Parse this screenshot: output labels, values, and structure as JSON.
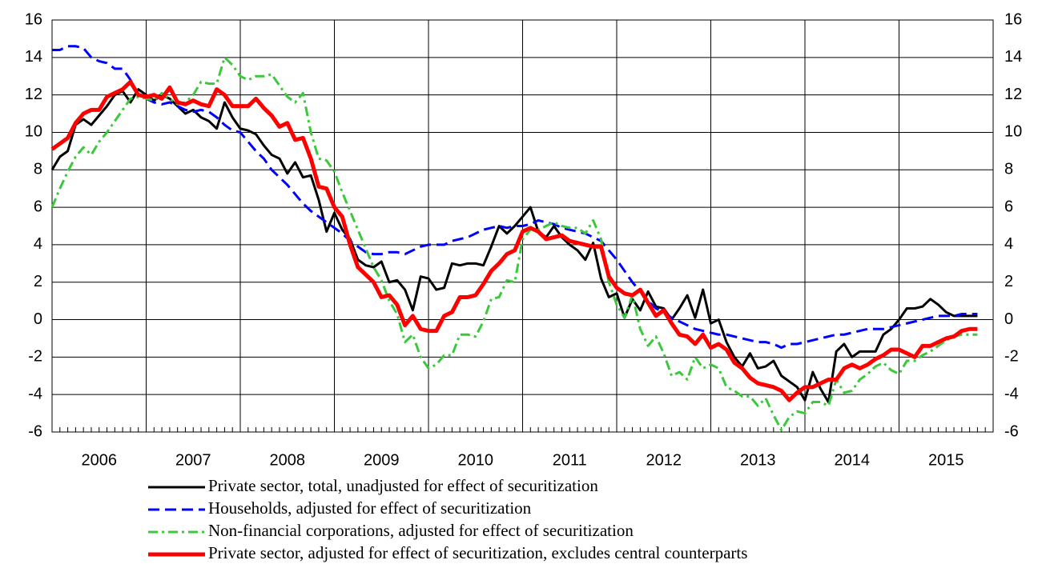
{
  "chart_data": {
    "type": "line",
    "categories": [
      null,
      null,
      null,
      null,
      null,
      null,
      "2006",
      null,
      null,
      null,
      null,
      null,
      null,
      null,
      null,
      null,
      null,
      null,
      "2007",
      null,
      null,
      null,
      null,
      null,
      null,
      null,
      null,
      null,
      null,
      null,
      "2008",
      null,
      null,
      null,
      null,
      null,
      null,
      null,
      null,
      null,
      null,
      null,
      "2009",
      null,
      null,
      null,
      null,
      null,
      null,
      null,
      null,
      null,
      null,
      null,
      "2010",
      null,
      null,
      null,
      null,
      null,
      null,
      null,
      null,
      null,
      null,
      null,
      "2011",
      null,
      null,
      null,
      null,
      null,
      null,
      null,
      null,
      null,
      null,
      null,
      "2012",
      null,
      null,
      null,
      null,
      null,
      null,
      null,
      null,
      null,
      null,
      null,
      "2013",
      null,
      null,
      null,
      null,
      null,
      null,
      null,
      null,
      null,
      null,
      null,
      "2014",
      null,
      null,
      null,
      null,
      null,
      null,
      null,
      null,
      null,
      null,
      null,
      "2015",
      null,
      null,
      null,
      null
    ],
    "series": [
      {
        "name": "Private sector, total, unadjusted for effect of securitization",
        "color": "#000000",
        "values": [
          8.0,
          8.7,
          9.0,
          10.4,
          10.7,
          10.4,
          10.9,
          11.4,
          12.0,
          12.2,
          11.6,
          12.3,
          12.0,
          11.7,
          12.0,
          11.8,
          11.4,
          11.0,
          11.2,
          10.8,
          10.6,
          10.2,
          11.6,
          10.8,
          10.2,
          10.1,
          9.9,
          9.3,
          8.8,
          8.6,
          7.8,
          8.4,
          7.6,
          7.7,
          6.4,
          4.7,
          5.7,
          4.8,
          4.3,
          3.2,
          2.9,
          2.8,
          3.1,
          2.0,
          2.1,
          1.6,
          0.5,
          2.3,
          2.2,
          1.6,
          1.7,
          3.0,
          2.9,
          3.0,
          3.0,
          2.9,
          3.9,
          5.0,
          4.6,
          5.0,
          5.5,
          6.0,
          4.7,
          4.4,
          5.0,
          4.4,
          4.0,
          3.7,
          3.2,
          4.1,
          2.2,
          1.2,
          1.4,
          0.1,
          1.1,
          0.5,
          1.5,
          0.7,
          0.6,
          0.0,
          0.6,
          1.3,
          0.1,
          1.6,
          -0.2,
          0.0,
          -1.2,
          -2.0,
          -2.5,
          -1.8,
          -2.6,
          -2.5,
          -2.2,
          -3.0,
          -3.3,
          -3.6,
          -4.3,
          -2.8,
          -3.7,
          -4.4,
          -1.7,
          -1.3,
          -2.0,
          -1.7,
          -1.7,
          -1.7,
          -0.8,
          -0.5,
          0.0,
          0.6,
          0.6,
          0.7,
          1.1,
          0.8,
          0.4,
          0.2,
          0.2,
          0.2,
          0.2
        ]
      },
      {
        "name": "Households, adjusted for effect of securitization",
        "color": "#0000ff",
        "values": [
          14.4,
          14.4,
          14.6,
          14.6,
          14.5,
          14.0,
          13.8,
          13.7,
          13.4,
          13.4,
          12.8,
          12.0,
          11.8,
          11.6,
          11.5,
          11.6,
          11.4,
          11.2,
          11.1,
          11.2,
          11.1,
          10.8,
          10.4,
          10.1,
          10.0,
          9.5,
          9.0,
          8.6,
          8.0,
          7.6,
          7.2,
          6.7,
          6.2,
          5.8,
          5.5,
          5.2,
          4.9,
          4.6,
          4.2,
          3.9,
          3.6,
          3.5,
          3.5,
          3.6,
          3.6,
          3.5,
          3.7,
          3.9,
          4.0,
          4.0,
          4.0,
          4.2,
          4.3,
          4.4,
          4.6,
          4.8,
          4.9,
          5.0,
          4.9,
          5.0,
          5.0,
          5.1,
          5.3,
          5.2,
          5.1,
          4.9,
          4.8,
          4.7,
          4.6,
          4.4,
          4.2,
          3.7,
          3.2,
          2.6,
          2.0,
          1.5,
          1.0,
          0.6,
          0.4,
          0.1,
          -0.1,
          -0.3,
          -0.5,
          -0.6,
          -0.7,
          -0.8,
          -0.8,
          -0.9,
          -1.0,
          -1.1,
          -1.2,
          -1.2,
          -1.3,
          -1.5,
          -1.3,
          -1.3,
          -1.2,
          -1.1,
          -1.0,
          -0.9,
          -0.8,
          -0.8,
          -0.7,
          -0.6,
          -0.5,
          -0.5,
          -0.5,
          -0.4,
          -0.3,
          -0.2,
          -0.1,
          0.0,
          0.1,
          0.2,
          0.2,
          0.2,
          0.3,
          0.3,
          0.3
        ]
      },
      {
        "name": "Non-financial corporations, adjusted for effect of securitization",
        "color": "#3cc83c",
        "values": [
          6.0,
          7.0,
          7.9,
          8.7,
          9.2,
          8.8,
          9.5,
          10.0,
          10.6,
          11.2,
          11.8,
          11.9,
          11.8,
          11.7,
          12.1,
          11.8,
          11.5,
          11.6,
          12.0,
          12.7,
          12.6,
          12.6,
          14.0,
          13.6,
          13.0,
          12.8,
          13.0,
          13.0,
          13.1,
          12.5,
          11.9,
          11.6,
          12.1,
          10.0,
          8.6,
          8.5,
          7.9,
          6.8,
          5.8,
          4.8,
          3.8,
          2.8,
          2.1,
          1.0,
          0.3,
          -1.2,
          -0.8,
          -2.0,
          -2.6,
          -2.4,
          -1.9,
          -1.9,
          -0.8,
          -0.8,
          -0.9,
          -0.1,
          1.1,
          1.2,
          2.1,
          2.0,
          4.3,
          4.8,
          4.8,
          5.0,
          5.2,
          5.0,
          4.9,
          4.9,
          4.6,
          5.3,
          4.3,
          2.0,
          0.8,
          0.1,
          1.3,
          -0.5,
          -1.4,
          -0.9,
          -1.8,
          -3.0,
          -2.8,
          -3.2,
          -2.0,
          -2.6,
          -2.4,
          -2.6,
          -3.6,
          -3.8,
          -4.1,
          -4.1,
          -4.6,
          -4.2,
          -5.1,
          -5.9,
          -5.2,
          -4.9,
          -5.0,
          -4.4,
          -4.4,
          -4.6,
          -3.2,
          -3.9,
          -3.8,
          -3.2,
          -2.9,
          -2.5,
          -2.3,
          -2.7,
          -2.9,
          -2.2,
          -2.2,
          -1.9,
          -1.7,
          -1.4,
          -1.1,
          -0.9,
          -0.8,
          -0.8,
          -0.8
        ]
      },
      {
        "name": "Private sector, adjusted for effect of securitization, excludes central counterparts",
        "color": "#ff0000",
        "values": [
          9.1,
          9.4,
          9.7,
          10.5,
          11.0,
          11.2,
          11.2,
          11.9,
          12.1,
          12.3,
          12.7,
          12.0,
          11.9,
          12.0,
          11.8,
          12.4,
          11.6,
          11.5,
          11.7,
          11.5,
          11.4,
          12.3,
          12.0,
          11.4,
          11.4,
          11.4,
          11.8,
          11.3,
          10.9,
          10.3,
          10.5,
          9.6,
          9.7,
          8.6,
          7.1,
          7.0,
          6.0,
          5.5,
          4.0,
          2.8,
          2.4,
          2.0,
          1.2,
          1.3,
          0.8,
          -0.3,
          0.2,
          -0.5,
          -0.6,
          -0.6,
          0.2,
          0.4,
          1.2,
          1.2,
          1.3,
          1.9,
          2.6,
          3.0,
          3.5,
          3.7,
          4.7,
          4.9,
          4.7,
          4.3,
          4.4,
          4.5,
          4.2,
          4.1,
          4.0,
          3.9,
          3.9,
          2.3,
          1.7,
          1.4,
          1.3,
          1.6,
          0.9,
          0.2,
          0.5,
          -0.2,
          -0.8,
          -0.9,
          -1.3,
          -0.8,
          -1.5,
          -1.3,
          -1.6,
          -2.3,
          -2.6,
          -3.1,
          -3.4,
          -3.5,
          -3.6,
          -3.8,
          -4.3,
          -3.9,
          -3.6,
          -3.6,
          -3.4,
          -3.2,
          -3.2,
          -2.6,
          -2.4,
          -2.6,
          -2.4,
          -2.1,
          -1.9,
          -1.6,
          -1.6,
          -1.8,
          -2.0,
          -1.4,
          -1.4,
          -1.2,
          -1.0,
          -0.9,
          -0.6,
          -0.5,
          -0.5
        ]
      }
    ],
    "ylim": [
      -6,
      16
    ],
    "yticks": [
      -6,
      -4,
      -2,
      0,
      2,
      4,
      6,
      8,
      10,
      12,
      14,
      16
    ],
    "grid": true
  }
}
